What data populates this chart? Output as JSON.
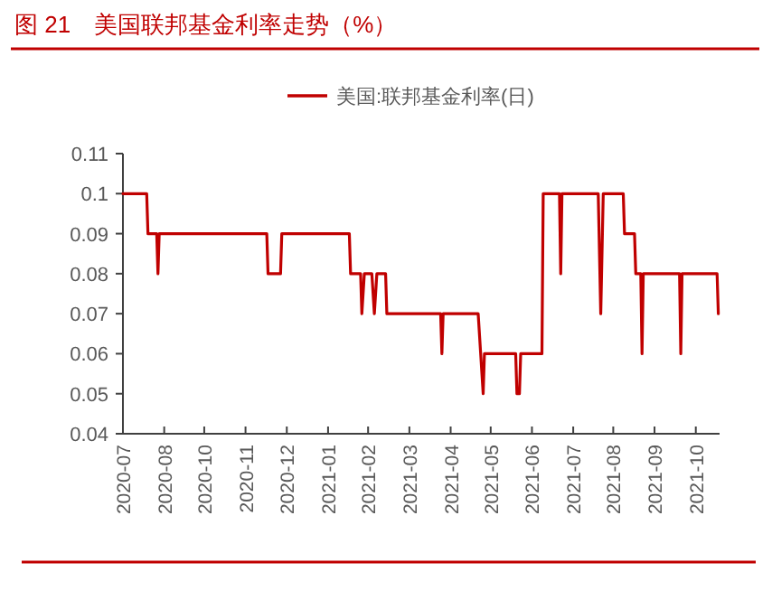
{
  "chart_data": {
    "type": "line",
    "title": "图 21　美国联邦基金利率走势（%）",
    "x": [
      "2020-07-29",
      "2020-08-17",
      "2020-08-18",
      "2020-08-25",
      "2020-08-26",
      "2020-08-27",
      "2020-11-21",
      "2020-11-22",
      "2020-12-02",
      "2020-12-03",
      "2021-01-26",
      "2021-01-27",
      "2021-02-04",
      "2021-02-05",
      "2021-02-07",
      "2021-02-13",
      "2021-02-15",
      "2021-02-17",
      "2021-02-24",
      "2021-02-25",
      "2021-04-09",
      "2021-04-10",
      "2021-04-11",
      "2021-05-09",
      "2021-05-13",
      "2021-05-14",
      "2021-06-08",
      "2021-06-09",
      "2021-06-11",
      "2021-06-12",
      "2021-06-29",
      "2021-06-30",
      "2021-07-13",
      "2021-07-14",
      "2021-07-15",
      "2021-08-13",
      "2021-08-15",
      "2021-08-17",
      "2021-09-02",
      "2021-09-03",
      "2021-09-11",
      "2021-09-12",
      "2021-09-16",
      "2021-09-17",
      "2021-09-18",
      "2021-10-17",
      "2021-10-18",
      "2021-10-19",
      "2021-11-16",
      "2021-11-17"
    ],
    "series": [
      {
        "name": "美国:联邦基金利率(日)",
        "color": "#c00000",
        "values": [
          0.1,
          0.1,
          0.09,
          0.09,
          0.08,
          0.09,
          0.09,
          0.08,
          0.08,
          0.09,
          0.09,
          0.08,
          0.08,
          0.07,
          0.08,
          0.08,
          0.07,
          0.08,
          0.08,
          0.07,
          0.07,
          0.06,
          0.07,
          0.07,
          0.05,
          0.06,
          0.06,
          0.05,
          0.05,
          0.06,
          0.06,
          0.1,
          0.1,
          0.08,
          0.1,
          0.1,
          0.07,
          0.1,
          0.1,
          0.09,
          0.09,
          0.08,
          0.08,
          0.06,
          0.08,
          0.08,
          0.06,
          0.08,
          0.08,
          0.07
        ]
      }
    ],
    "xlim": [
      "2020-07-29",
      "2021-11-18"
    ],
    "xticks": [
      {
        "value": "2020-07-29",
        "label": "2020-07"
      },
      {
        "value": "2020-08-31",
        "label": "2020-08"
      },
      {
        "value": "2020-10-02",
        "label": "2020-10"
      },
      {
        "value": "2020-11-04",
        "label": "2020-11"
      },
      {
        "value": "2020-12-07",
        "label": "2020-12"
      },
      {
        "value": "2021-01-09",
        "label": "2021-01"
      },
      {
        "value": "2021-02-10",
        "label": "2021-02"
      },
      {
        "value": "2021-03-15",
        "label": "2021-03"
      },
      {
        "value": "2021-04-17",
        "label": "2021-04"
      },
      {
        "value": "2021-05-19",
        "label": "2021-05"
      },
      {
        "value": "2021-06-21",
        "label": "2021-06"
      },
      {
        "value": "2021-07-24",
        "label": "2021-07"
      },
      {
        "value": "2021-08-25",
        "label": "2021-08"
      },
      {
        "value": "2021-09-27",
        "label": "2021-09"
      },
      {
        "value": "2021-10-30",
        "label": "2021-10"
      }
    ],
    "ylim": [
      0.04,
      0.11
    ],
    "yticks": [
      0.04,
      0.05,
      0.06,
      0.07,
      0.08,
      0.09,
      0.1,
      0.11
    ],
    "legend": "top",
    "grid": false,
    "marker": "none",
    "line_style": "solid"
  }
}
